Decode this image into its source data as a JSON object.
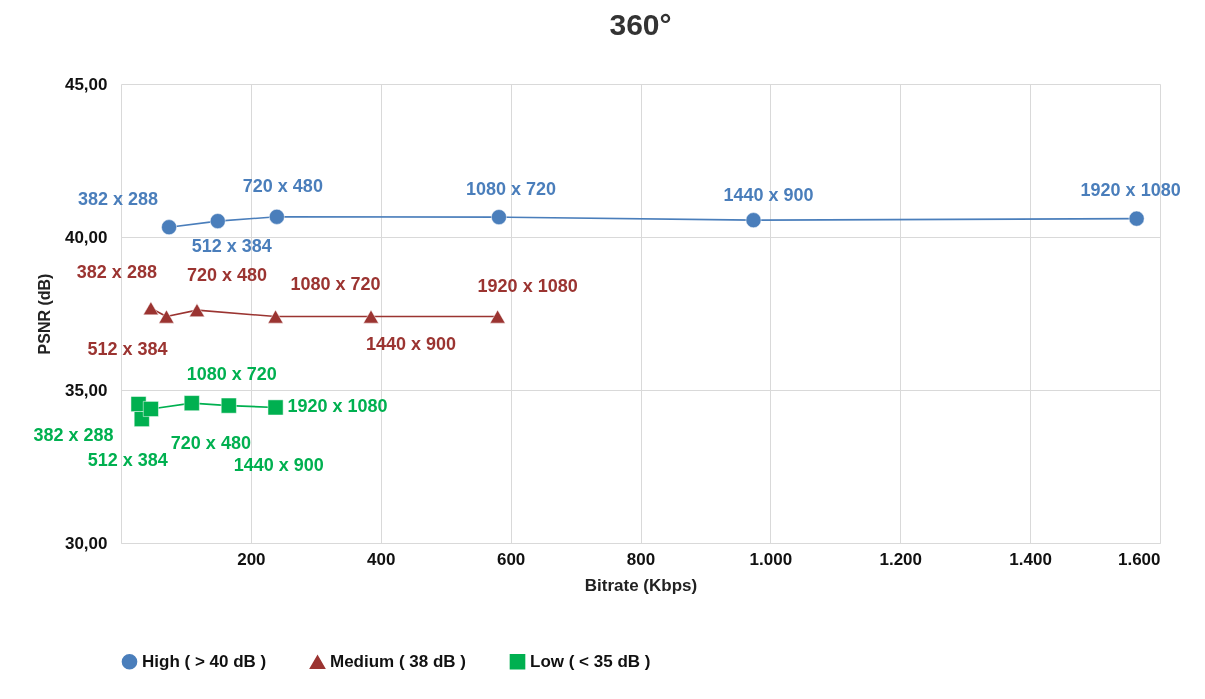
{
  "chart_data": {
    "type": "line",
    "title": "360°",
    "xlabel": "Bitrate (Kbps)",
    "ylabel": "PSNR (dB)",
    "xlim": [
      0,
      1600
    ],
    "xticks": [
      200,
      400,
      600,
      800,
      {
        "value": 1000,
        "label": "1.000"
      },
      {
        "value": 1200,
        "label": "1.200"
      },
      {
        "value": 1400,
        "label": "1.400"
      },
      {
        "value": 1600,
        "label": "1.600"
      }
    ],
    "ylim": [
      30,
      45
    ],
    "yticks": [
      {
        "value": 30,
        "label": "30,00"
      },
      {
        "value": 35,
        "label": "35,00"
      },
      {
        "value": 40,
        "label": "40,00"
      },
      {
        "value": 45,
        "label": "45,00"
      }
    ],
    "grid": true,
    "legend": "bottom",
    "series": [
      {
        "name": "High ( > 40 dB )",
        "color": "#4a7ebb",
        "marker": "circle",
        "x": [
          74,
          149,
          240,
          582,
          974,
          1564
        ],
        "values": [
          40.32,
          40.52,
          40.66,
          40.65,
          40.55,
          40.6
        ]
      },
      {
        "name": "Medium ( 38 dB )",
        "color": "#9b3431",
        "marker": "triangle",
        "x": [
          46,
          70,
          117,
          238,
          385,
          580
        ],
        "values": [
          37.67,
          37.4,
          37.61,
          37.4,
          37.4,
          37.4
        ]
      },
      {
        "name": "Low ( < 35 dB )",
        "color": "#00b050",
        "marker": "square",
        "x": [
          27,
          32,
          46,
          109,
          166,
          238
        ],
        "values": [
          34.54,
          34.05,
          34.38,
          34.57,
          34.49,
          34.43
        ]
      }
    ],
    "annotations": [
      {
        "text": "382 x 288",
        "x": 74,
        "y": 40.32
      },
      {
        "text": "512 x 384",
        "x": 149,
        "y": 40.52
      },
      {
        "text": "720 x 480",
        "x": 240,
        "y": 40.66
      },
      {
        "text": "1080 x 720",
        "x": 582,
        "y": 40.65
      },
      {
        "text": "1440 x 900",
        "x": 974,
        "y": 40.55
      },
      {
        "text": "1920 x 1080",
        "x": 1564,
        "y": 40.6
      },
      {
        "text": "382 x 288",
        "x": 46,
        "y": 37.67
      },
      {
        "text": "512 x 384",
        "x": 70,
        "y": 37.4
      },
      {
        "text": "720 x 480",
        "x": 117,
        "y": 37.61
      },
      {
        "text": "1080 x 720",
        "x": 238,
        "y": 37.4
      },
      {
        "text": "1440 x 900",
        "x": 385,
        "y": 37.4
      },
      {
        "text": "1920 x 1080",
        "x": 580,
        "y": 37.4
      },
      {
        "text": "382 x 288",
        "x": 27,
        "y": 34.54
      },
      {
        "text": "512 x 384",
        "x": 32,
        "y": 34.05
      },
      {
        "text": "720 x 480",
        "x": 46,
        "y": 34.38
      },
      {
        "text": "1080 x 720",
        "x": 109,
        "y": 34.57
      },
      {
        "text": "1440 x 900",
        "x": 166,
        "y": 34.49
      },
      {
        "text": "1920 x 1080",
        "x": 238,
        "y": 34.43
      }
    ]
  }
}
